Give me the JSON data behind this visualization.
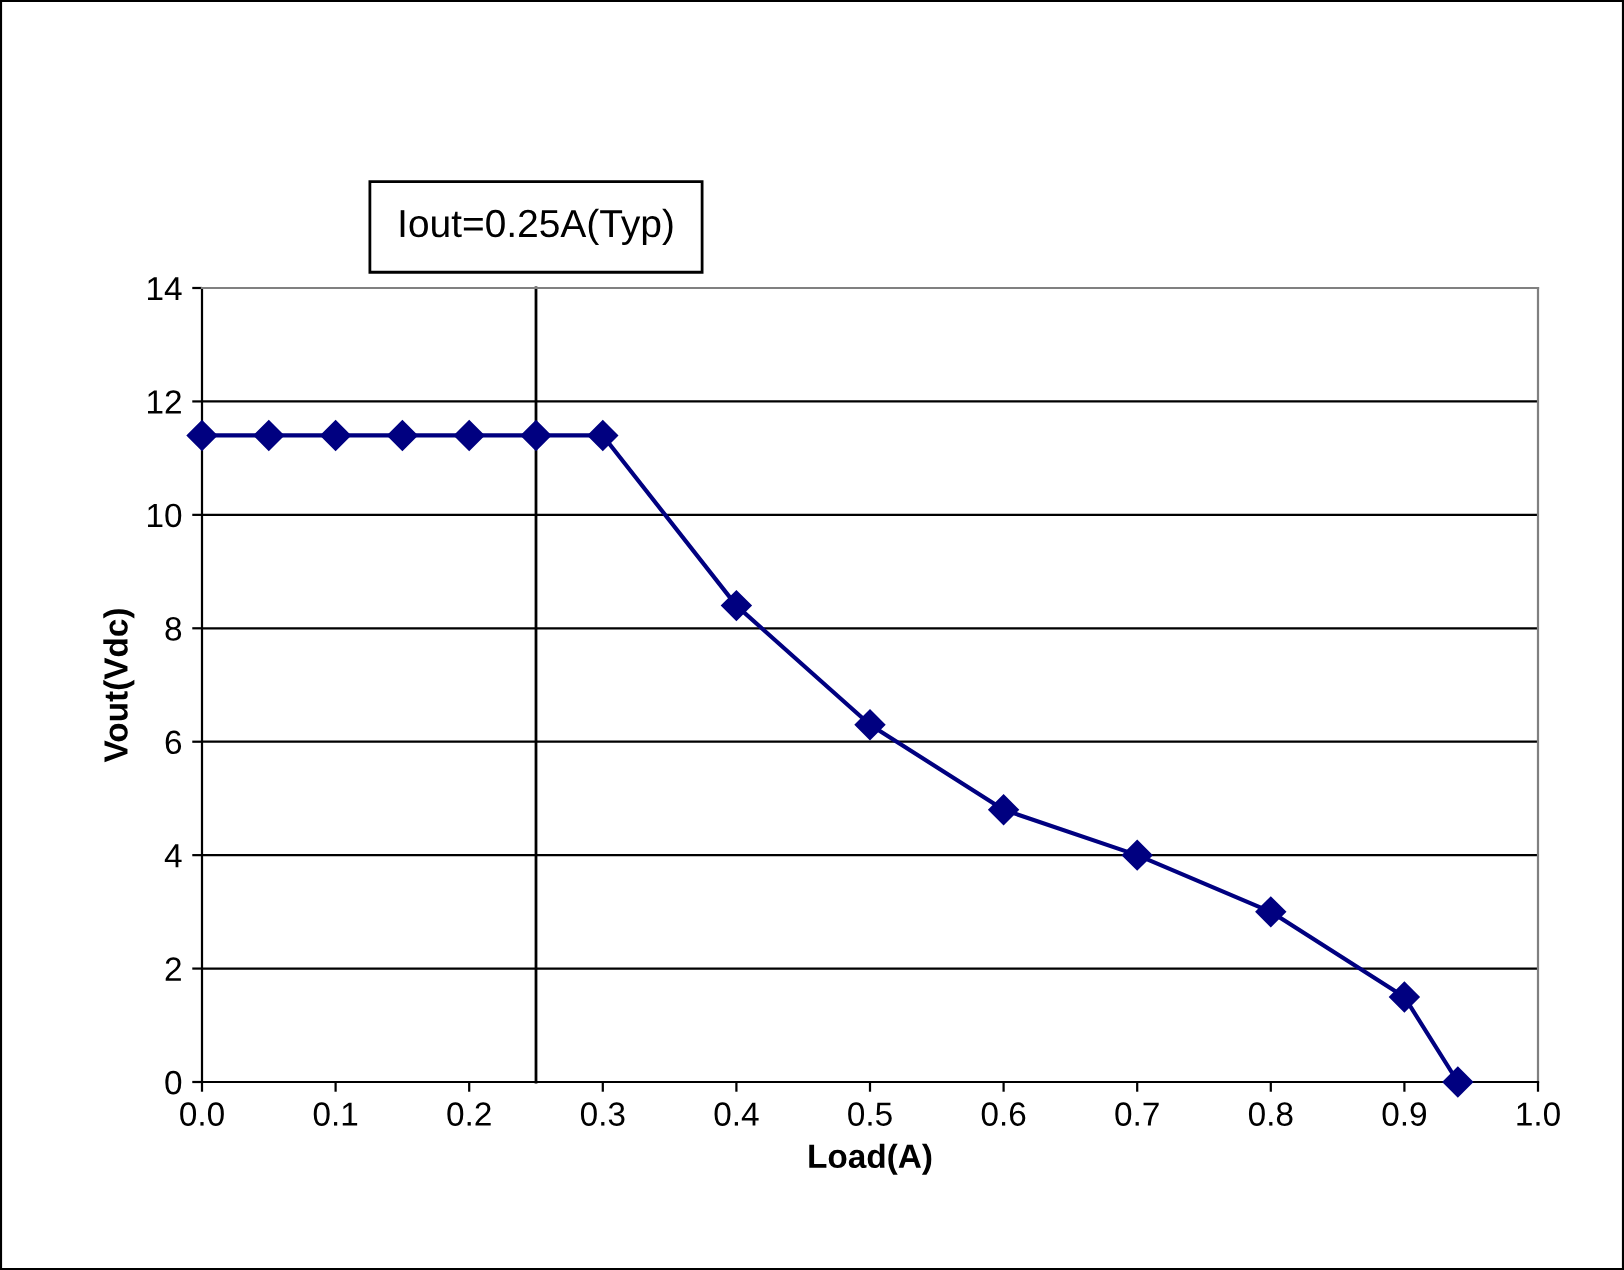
{
  "chart_data": {
    "type": "line",
    "xlabel": "Load(A)",
    "ylabel": "Vout(Vdc)",
    "x": [
      0,
      0.05,
      0.1,
      0.15,
      0.2,
      0.25,
      0.3,
      0.4,
      0.5,
      0.6,
      0.7,
      0.8,
      0.9,
      0.94
    ],
    "series": [
      {
        "color": "#000080",
        "values": [
          11.4,
          11.4,
          11.4,
          11.4,
          11.4,
          11.4,
          11.4,
          8.4,
          6.3,
          4.8,
          4.0,
          3.0,
          1.5,
          0
        ]
      }
    ],
    "xlim": [
      0,
      1.0
    ],
    "xticks": [
      {
        "value": 0,
        "label": "0.0"
      },
      {
        "value": 0.1,
        "label": "0.1"
      },
      {
        "value": 0.2,
        "label": "0.2"
      },
      {
        "value": 0.3,
        "label": "0.3"
      },
      {
        "value": 0.4,
        "label": "0.4"
      },
      {
        "value": 0.5,
        "label": "0.5"
      },
      {
        "value": 0.6,
        "label": "0.6"
      },
      {
        "value": 0.7,
        "label": "0.7"
      },
      {
        "value": 0.8,
        "label": "0.8"
      },
      {
        "value": 0.9,
        "label": "0.9"
      },
      {
        "value": 1.0,
        "label": "1.0"
      }
    ],
    "ylim": [
      0,
      14
    ],
    "yticks": [
      0,
      2,
      4,
      6,
      8,
      10,
      12,
      14
    ],
    "ref_lines": [
      {
        "axis": "x",
        "value": 0.25,
        "label": "Iout=0.25A(Typ)",
        "color": "#000000"
      }
    ],
    "grid": "y",
    "marker": "diamond",
    "line_style": "solid"
  }
}
